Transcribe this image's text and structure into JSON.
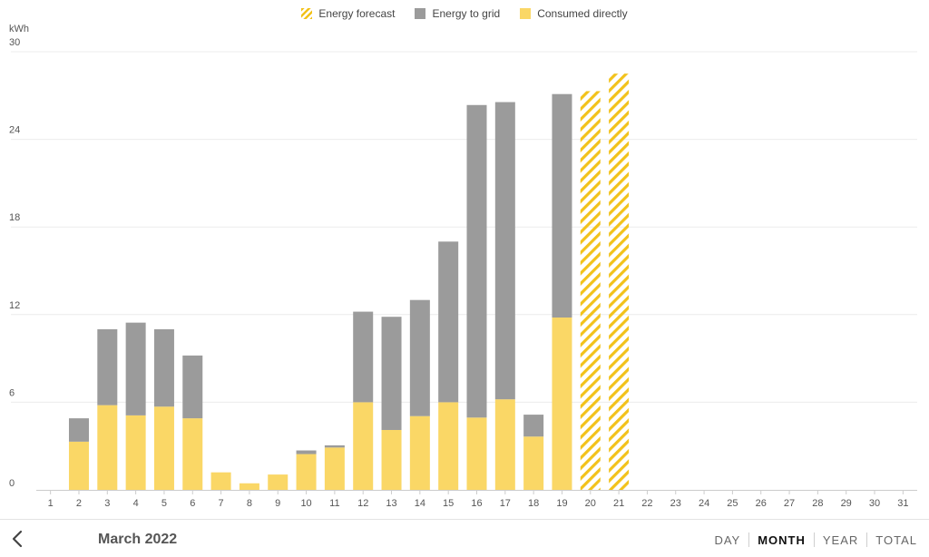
{
  "legend": {
    "forecast": "Energy forecast",
    "grid": "Energy to grid",
    "consumed": "Consumed directly"
  },
  "colors": {
    "consumed": "#fad766",
    "grid": "#9b9b9b",
    "forecast": "#f2c21b",
    "gridline": "#ececec",
    "axis": "#cccccc"
  },
  "footer": {
    "period": "March 2022",
    "ranges": [
      "DAY",
      "MONTH",
      "YEAR",
      "TOTAL"
    ],
    "active_range": "MONTH"
  },
  "chart_data": {
    "type": "bar",
    "stacked": true,
    "ylabel": "kWh",
    "ylim": [
      0,
      30
    ],
    "yticks": [
      0,
      6,
      12,
      18,
      24,
      30
    ],
    "categories": [
      "1",
      "2",
      "3",
      "4",
      "5",
      "6",
      "7",
      "8",
      "9",
      "10",
      "11",
      "12",
      "13",
      "14",
      "15",
      "16",
      "17",
      "18",
      "19",
      "20",
      "21",
      "22",
      "23",
      "24",
      "25",
      "26",
      "27",
      "28",
      "29",
      "30",
      "31"
    ],
    "series": [
      {
        "name": "Consumed directly",
        "values": [
          null,
          3.3,
          5.8,
          5.1,
          5.7,
          4.9,
          1.2,
          0.45,
          1.05,
          2.45,
          2.9,
          6.0,
          4.1,
          5.05,
          6.0,
          4.95,
          6.2,
          3.65,
          11.8,
          null,
          null,
          null,
          null,
          null,
          null,
          null,
          null,
          null,
          null,
          null,
          null
        ]
      },
      {
        "name": "Energy to grid",
        "values": [
          null,
          1.6,
          5.2,
          6.35,
          5.3,
          4.3,
          null,
          null,
          null,
          0.25,
          0.15,
          6.2,
          7.75,
          7.95,
          11.0,
          21.4,
          20.35,
          1.5,
          15.3,
          null,
          null,
          null,
          null,
          null,
          null,
          null,
          null,
          null,
          null,
          null,
          null
        ]
      },
      {
        "name": "Energy forecast",
        "values": [
          null,
          null,
          null,
          null,
          null,
          null,
          null,
          null,
          null,
          null,
          null,
          null,
          null,
          null,
          null,
          null,
          null,
          null,
          null,
          27.3,
          28.5,
          null,
          null,
          null,
          null,
          null,
          null,
          null,
          null,
          null,
          null
        ]
      }
    ]
  }
}
